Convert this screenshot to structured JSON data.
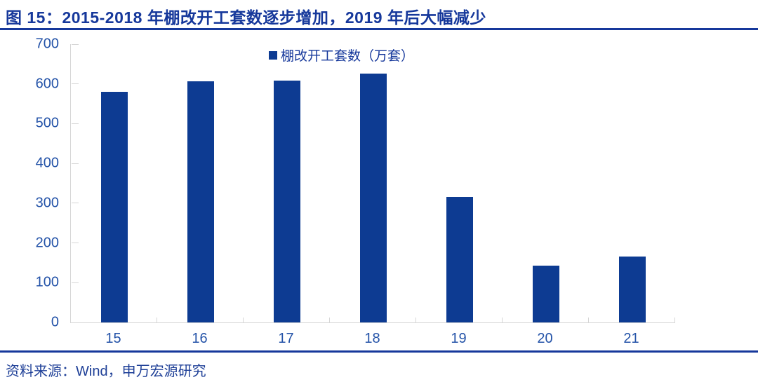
{
  "title": "图 15：2015-2018 年棚改开工套数逐步增加，2019 年后大幅减少",
  "source": "资料来源：Wind，申万宏源研究",
  "chart_data": {
    "type": "bar",
    "title": "图 15：2015-2018 年棚改开工套数逐步增加，2019 年后大幅减少",
    "legend": [
      "棚改开工套数（万套）"
    ],
    "legend_position": "top-center",
    "categories": [
      "15",
      "16",
      "17",
      "18",
      "19",
      "20",
      "21"
    ],
    "values": [
      580,
      606,
      609,
      626,
      316,
      143,
      165
    ],
    "xlabel": "",
    "ylabel": "",
    "ylim": [
      0,
      700
    ],
    "yticks": [
      0,
      100,
      200,
      300,
      400,
      500,
      600,
      700
    ],
    "grid": false
  },
  "colors": {
    "bar": "#0d3b92",
    "title": "#16389b",
    "axis_label": "#2453a8",
    "axis_line": "#d6d6d6",
    "separator": "#16389b"
  }
}
